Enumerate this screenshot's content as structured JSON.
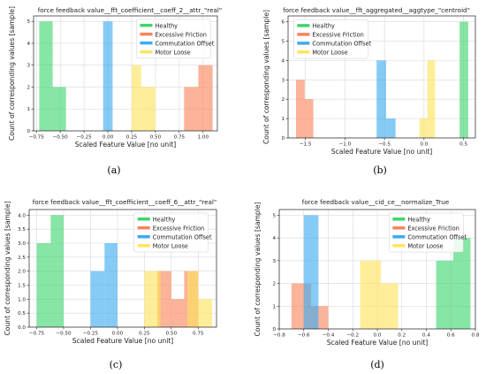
{
  "colors": {
    "Healthy": "#3dd56d",
    "Excessive Friction": "#f8845b",
    "Commutation Offset": "#3aabf0",
    "Motor Loose": "#fde45c"
  },
  "legend_items": [
    "Healthy",
    "Excessive Friction",
    "Commutation Offset",
    "Motor Loose"
  ],
  "chart_data": [
    {
      "type": "histogram",
      "panel": "a",
      "title": "force feedback value__fft_coefficient__coeff_2__attr_\"real\"",
      "xlabel": "Scaled Feature Value [no unit]",
      "ylabel": "Count of corresponding values [sample]",
      "xlim": [
        -0.78,
        1.15
      ],
      "ylim": [
        0,
        5.25
      ],
      "xticks": [
        -0.75,
        -0.5,
        -0.25,
        0.0,
        0.25,
        0.5,
        0.75,
        1.0
      ],
      "xtick_labels": [
        "−0.75",
        "−0.50",
        "−0.25",
        "0.00",
        "0.25",
        "0.50",
        "0.75",
        "1.00"
      ],
      "yticks": [
        0,
        1,
        2,
        3,
        4,
        5
      ],
      "ytick_labels": [
        "0",
        "1",
        "2",
        "3",
        "4",
        "5"
      ],
      "legend_position": "top-right",
      "grid": true,
      "series": [
        {
          "name": "Healthy",
          "bins": [
            [
              -0.72,
              -0.58,
              5
            ],
            [
              -0.58,
              -0.44,
              2
            ]
          ]
        },
        {
          "name": "Excessive Friction",
          "bins": [
            [
              0.8,
              0.95,
              2
            ],
            [
              0.95,
              1.1,
              3
            ]
          ]
        },
        {
          "name": "Commutation Offset",
          "bins": [
            [
              -0.05,
              0.05,
              5
            ]
          ]
        },
        {
          "name": "Motor Loose",
          "bins": [
            [
              0.25,
              0.35,
              3
            ],
            [
              0.35,
              0.5,
              2
            ]
          ]
        }
      ]
    },
    {
      "type": "histogram",
      "panel": "b",
      "title": "force feedback value__fft_aggregated__aggtype_\"centroid\"",
      "xlabel": "Scaled Feature Value [no unit]",
      "ylabel": "Count of corresponding values [sample]",
      "xlim": [
        -1.72,
        0.65
      ],
      "ylim": [
        0,
        6.3
      ],
      "xticks": [
        -1.5,
        -1.0,
        -0.5,
        0.0,
        0.5
      ],
      "xtick_labels": [
        "−1.5",
        "−1.0",
        "−0.5",
        "0.0",
        "0.5"
      ],
      "yticks": [
        0,
        1,
        2,
        3,
        4,
        5,
        6
      ],
      "ytick_labels": [
        "0",
        "1",
        "2",
        "3",
        "4",
        "5",
        "6"
      ],
      "legend_position": "top-left",
      "grid": true,
      "series": [
        {
          "name": "Healthy",
          "bins": [
            [
              0.45,
              0.56,
              6
            ]
          ]
        },
        {
          "name": "Excessive Friction",
          "bins": [
            [
              -1.62,
              -1.51,
              3
            ],
            [
              -1.51,
              -1.4,
              2
            ]
          ]
        },
        {
          "name": "Commutation Offset",
          "bins": [
            [
              -0.6,
              -0.48,
              4
            ],
            [
              -0.48,
              -0.36,
              1
            ]
          ]
        },
        {
          "name": "Motor Loose",
          "bins": [
            [
              -0.06,
              0.04,
              1
            ],
            [
              0.04,
              0.14,
              4
            ]
          ]
        }
      ]
    },
    {
      "type": "histogram",
      "panel": "c",
      "title": "force feedback value__fft_coefficient__coeff_6__attr_\"real\"",
      "xlabel": "Scaled Feature Value [no unit]",
      "ylabel": "Count of corresponding values [sample]",
      "xlim": [
        -0.82,
        0.92
      ],
      "ylim": [
        0,
        4.2
      ],
      "xticks": [
        -0.75,
        -0.5,
        -0.25,
        0.0,
        0.25,
        0.5,
        0.75
      ],
      "xtick_labels": [
        "−0.75",
        "−0.50",
        "−0.25",
        "0.00",
        "0.25",
        "0.50",
        "0.75"
      ],
      "yticks": [
        0,
        0.5,
        1.0,
        1.5,
        2.0,
        2.5,
        3.0,
        3.5,
        4.0
      ],
      "ytick_labels": [
        "0.0",
        "0.5",
        "1.0",
        "1.5",
        "2.0",
        "2.5",
        "3.0",
        "3.5",
        "4.0"
      ],
      "legend_position": "top-right",
      "grid": true,
      "series": [
        {
          "name": "Healthy",
          "bins": [
            [
              -0.75,
              -0.62,
              3
            ],
            [
              -0.62,
              -0.5,
              4
            ]
          ]
        },
        {
          "name": "Excessive Friction",
          "bins": [
            [
              0.37,
              0.5,
              2
            ],
            [
              0.5,
              0.62,
              1
            ],
            [
              0.62,
              0.75,
              2
            ]
          ]
        },
        {
          "name": "Commutation Offset",
          "bins": [
            [
              -0.25,
              -0.12,
              2
            ],
            [
              -0.12,
              0.0,
              3
            ]
          ]
        },
        {
          "name": "Motor Loose",
          "bins": [
            [
              0.25,
              0.4,
              2
            ],
            [
              0.65,
              0.75,
              2
            ],
            [
              0.75,
              0.88,
              1
            ]
          ]
        }
      ]
    },
    {
      "type": "histogram",
      "panel": "d",
      "title": "force feedback value__cid_ce__normalize_True",
      "xlabel": "Scaled Feature Value [no unit]",
      "ylabel": "Count of corresponding values [sample]",
      "xlim": [
        -0.8,
        0.8
      ],
      "ylim": [
        0,
        5.25
      ],
      "xticks": [
        -0.8,
        -0.6,
        -0.4,
        -0.2,
        0.0,
        0.2,
        0.4,
        0.6,
        0.8
      ],
      "xtick_labels": [
        "−0.8",
        "−0.6",
        "−0.4",
        "−0.2",
        "0.0",
        "0.2",
        "0.4",
        "0.6",
        "0.8"
      ],
      "yticks": [
        0,
        1,
        2,
        3,
        4,
        5
      ],
      "ytick_labels": [
        "0",
        "1",
        "2",
        "3",
        "4",
        "5"
      ],
      "legend_position": "top-right",
      "grid": true,
      "series": [
        {
          "name": "Healthy",
          "bins": [
            [
              0.48,
              0.62,
              3
            ],
            [
              0.62,
              0.76,
              4
            ]
          ]
        },
        {
          "name": "Excessive Friction",
          "bins": [
            [
              -0.7,
              -0.54,
              2
            ],
            [
              -0.54,
              -0.4,
              1
            ]
          ]
        },
        {
          "name": "Commutation Offset",
          "bins": [
            [
              -0.6,
              -0.48,
              5
            ]
          ]
        },
        {
          "name": "Motor Loose",
          "bins": [
            [
              -0.14,
              0.03,
              3
            ],
            [
              0.03,
              0.17,
              2
            ]
          ]
        }
      ]
    }
  ],
  "panel_labels": [
    "(a)",
    "(b)",
    "(c)",
    "(d)"
  ]
}
